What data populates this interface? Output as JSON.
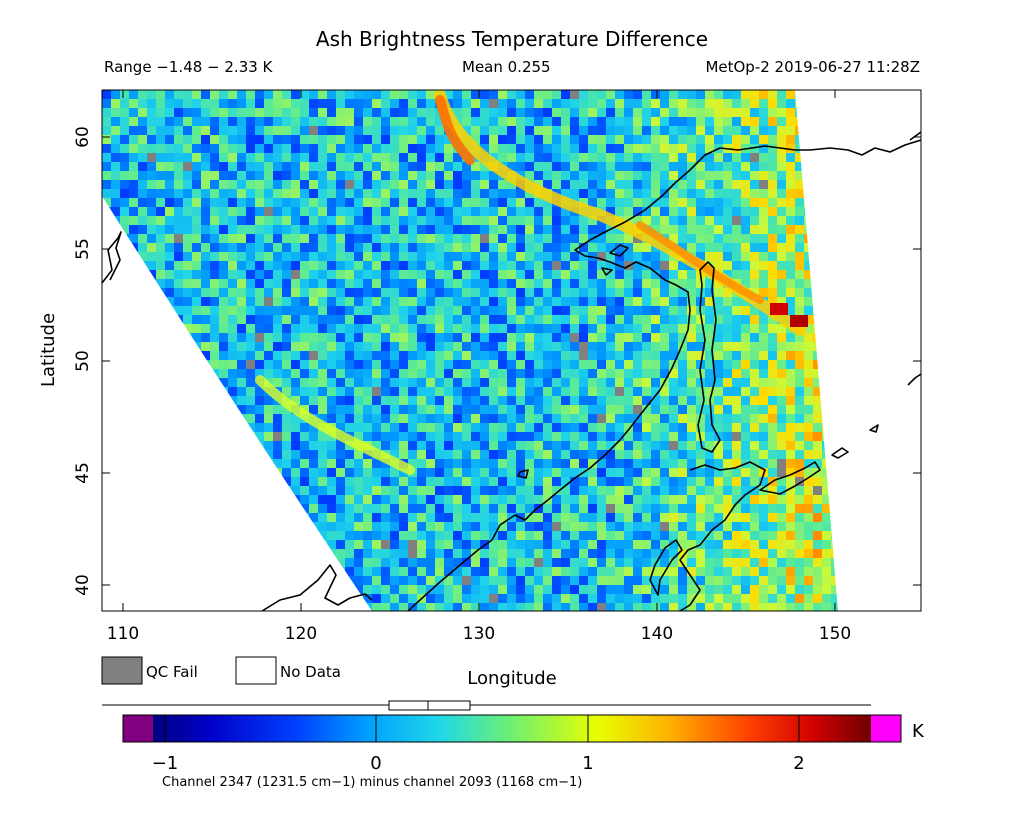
{
  "header": {
    "title": "Ash Brightness Temperature Difference",
    "range_text": "Range −1.48 − 2.33 K",
    "mean_text": "Mean 0.255",
    "satellite_text": "MetOp-2 2019-06-27 11:28Z"
  },
  "axes": {
    "ylabel": "Latitude",
    "xlabel": "Longitude",
    "lat_ticks": [
      "40",
      "45",
      "50",
      "55",
      "60"
    ],
    "lon_ticks": [
      "110",
      "120",
      "130",
      "140",
      "150"
    ]
  },
  "legend": {
    "qc_fail_label": "QC Fail",
    "no_data_label": "No Data",
    "qc_fail_color": "#808080",
    "no_data_color": "#ffffff"
  },
  "colorbar": {
    "ticks": [
      "−1",
      "0",
      "1",
      "2"
    ],
    "unit": "K",
    "caption": "Channel 2347 (1231.5 cm−1) minus channel 2093 (1168 cm−1)",
    "min": -1.48,
    "max": 2.33,
    "low_cap_color": "#800080",
    "high_cap_color": "#ff00ff"
  },
  "chart_data": {
    "type": "heatmap",
    "title": "Ash Brightness Temperature Difference",
    "xlabel": "Longitude",
    "ylabel": "Latitude",
    "xlim": [
      108.5,
      154.5
    ],
    "ylim": [
      38.9,
      62.2
    ],
    "value_range": [
      -1.48,
      2.33
    ],
    "mean": 0.255,
    "units": "K"
  }
}
